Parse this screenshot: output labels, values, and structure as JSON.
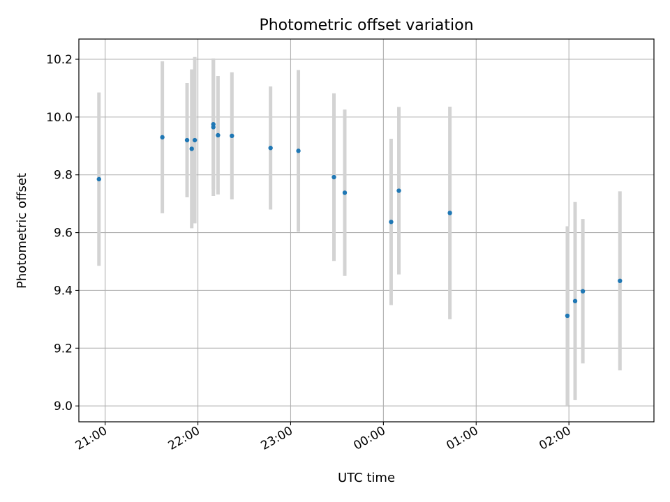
{
  "chart_data": {
    "type": "scatter",
    "title": "Photometric offset variation",
    "xlabel": "UTC time",
    "ylabel": "Photometric offset",
    "grid": true,
    "x_ticks": [
      "21:00",
      "22:00",
      "23:00",
      "00:00",
      "01:00",
      "02:00"
    ],
    "y_ticks": [
      "9.0",
      "9.2",
      "9.4",
      "9.6",
      "9.8",
      "10.0",
      "10.2"
    ],
    "errorbar_color": "#d3d3d3",
    "point_color": "#1f77b4",
    "series": [
      {
        "points": [
          {
            "time": "20:56",
            "y": 9.785,
            "err": 0.3
          },
          {
            "time": "21:37",
            "y": 9.93,
            "err": 0.263
          },
          {
            "time": "21:53",
            "y": 9.92,
            "err": 0.198
          },
          {
            "time": "21:56",
            "y": 9.89,
            "err": 0.275
          },
          {
            "time": "21:58",
            "y": 9.92,
            "err": 0.288
          },
          {
            "time": "22:10",
            "y": 9.975,
            "err": 0.225
          },
          {
            "time": "22:10",
            "y": 9.965,
            "err": 0.238
          },
          {
            "time": "22:13",
            "y": 9.937,
            "err": 0.205
          },
          {
            "time": "22:22",
            "y": 9.935,
            "err": 0.22
          },
          {
            "time": "22:47",
            "y": 9.893,
            "err": 0.213
          },
          {
            "time": "23:05",
            "y": 9.883,
            "err": 0.28
          },
          {
            "time": "23:28",
            "y": 9.792,
            "err": 0.29
          },
          {
            "time": "23:35",
            "y": 9.738,
            "err": 0.288
          },
          {
            "time": "00:05",
            "y": 9.637,
            "err": 0.288
          },
          {
            "time": "00:10",
            "y": 9.745,
            "err": 0.29
          },
          {
            "time": "00:43",
            "y": 9.668,
            "err": 0.368
          },
          {
            "time": "01:59",
            "y": 9.312,
            "err": 0.31
          },
          {
            "time": "02:04",
            "y": 9.363,
            "err": 0.343
          },
          {
            "time": "02:09",
            "y": 9.397,
            "err": 0.25
          },
          {
            "time": "02:33",
            "y": 9.433,
            "err": 0.31
          }
        ]
      }
    ]
  }
}
